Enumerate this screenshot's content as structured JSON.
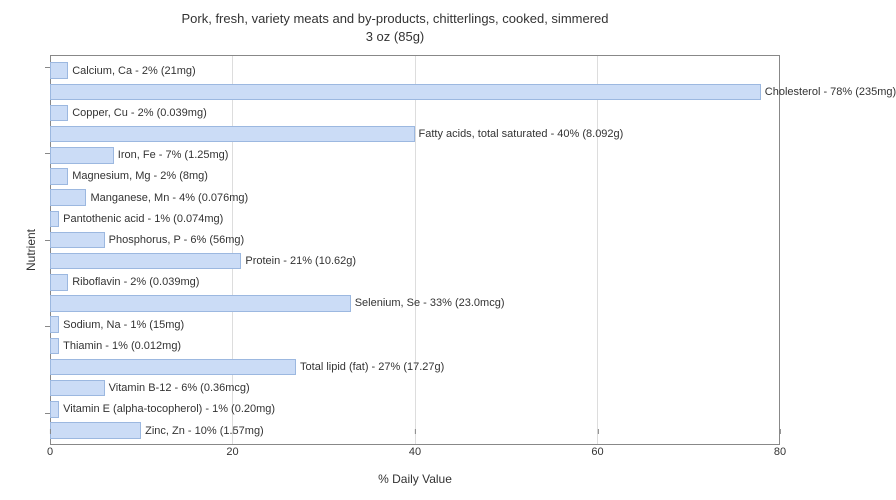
{
  "chart": {
    "title_line1": "Pork, fresh, variety meats and by-products, chitterlings, cooked, simmered",
    "title_line2": "3 oz (85g)",
    "xlabel": "% Daily Value",
    "ylabel": "Nutrient",
    "xlim": [
      0,
      80
    ],
    "xticks": [
      0,
      20,
      40,
      60,
      80
    ],
    "bar_fill": "#cbdcf6",
    "bar_border": "#9cb8e0",
    "grid_color": "#dddddd",
    "axis_color": "#888888",
    "text_color": "#333333",
    "background": "#ffffff",
    "title_fontsize": 13,
    "label_fontsize": 11,
    "axis_label_fontsize": 12,
    "bars": [
      {
        "label": "Calcium, Ca - 2% (21mg)",
        "value": 2
      },
      {
        "label": "Cholesterol - 78% (235mg)",
        "value": 78
      },
      {
        "label": "Copper, Cu - 2% (0.039mg)",
        "value": 2
      },
      {
        "label": "Fatty acids, total saturated - 40% (8.092g)",
        "value": 40
      },
      {
        "label": "Iron, Fe - 7% (1.25mg)",
        "value": 7
      },
      {
        "label": "Magnesium, Mg - 2% (8mg)",
        "value": 2
      },
      {
        "label": "Manganese, Mn - 4% (0.076mg)",
        "value": 4
      },
      {
        "label": "Pantothenic acid - 1% (0.074mg)",
        "value": 1
      },
      {
        "label": "Phosphorus, P - 6% (56mg)",
        "value": 6
      },
      {
        "label": "Protein - 21% (10.62g)",
        "value": 21
      },
      {
        "label": "Riboflavin - 2% (0.039mg)",
        "value": 2
      },
      {
        "label": "Selenium, Se - 33% (23.0mcg)",
        "value": 33
      },
      {
        "label": "Sodium, Na - 1% (15mg)",
        "value": 1
      },
      {
        "label": "Thiamin - 1% (0.012mg)",
        "value": 1
      },
      {
        "label": "Total lipid (fat) - 27% (17.27g)",
        "value": 27
      },
      {
        "label": "Vitamin B-12 - 6% (0.36mcg)",
        "value": 6
      },
      {
        "label": "Vitamin E (alpha-tocopherol) - 1% (0.20mg)",
        "value": 1
      },
      {
        "label": "Zinc, Zn - 10% (1.57mg)",
        "value": 10
      }
    ]
  }
}
